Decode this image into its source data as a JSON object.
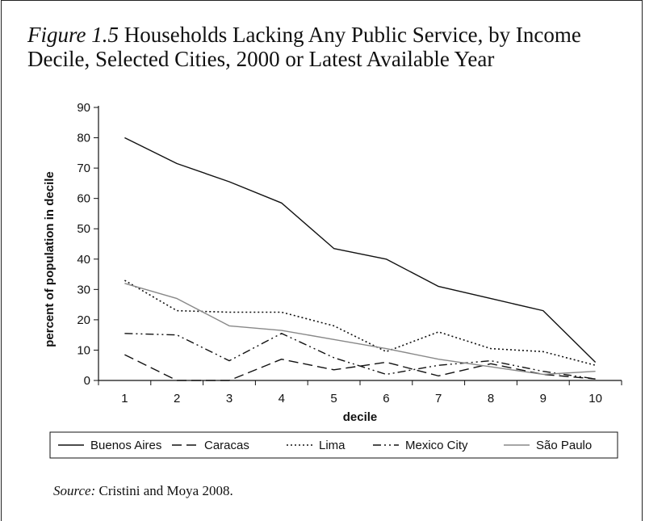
{
  "figure": {
    "label": "Figure 1.5",
    "title": "Households Lacking Any Public Service, by Income Decile, Selected Cities, 2000 or Latest Available Year"
  },
  "source": {
    "label": "Source:",
    "text": "Cristini and Moya 2008."
  },
  "chart_data": {
    "type": "line",
    "xlabel": "decile",
    "ylabel": "percent of population in decile",
    "x": [
      1,
      2,
      3,
      4,
      5,
      6,
      7,
      8,
      9,
      10
    ],
    "xlim": [
      0.5,
      10.5
    ],
    "ylim": [
      0,
      90
    ],
    "yticks": [
      0,
      10,
      20,
      30,
      40,
      50,
      60,
      70,
      80,
      90
    ],
    "grid": false,
    "legend_position": "bottom",
    "series": [
      {
        "name": "Buenos Aires",
        "color": "#111111",
        "dash": "solid",
        "values": [
          80,
          71.5,
          65.5,
          58.5,
          43.5,
          40,
          31,
          27,
          23,
          6
        ]
      },
      {
        "name": "Caracas",
        "color": "#111111",
        "dash": "dashed",
        "values": [
          8.5,
          0,
          0,
          7,
          3.5,
          6,
          1.5,
          5.5,
          2,
          0.5
        ]
      },
      {
        "name": "Lima",
        "color": "#111111",
        "dash": "dotted",
        "values": [
          33,
          23,
          22.5,
          22.5,
          18,
          9.5,
          16,
          10.5,
          9.5,
          5
        ]
      },
      {
        "name": "Mexico City",
        "color": "#111111",
        "dash": "dash-dot-dot",
        "values": [
          15.5,
          15,
          6.5,
          15.5,
          7.5,
          2,
          5,
          6.5,
          3,
          0.5
        ]
      },
      {
        "name": "São Paulo",
        "color": "#888888",
        "dash": "solid",
        "values": [
          32,
          27,
          18,
          16.5,
          13.5,
          10.5,
          7,
          4.5,
          2,
          3
        ]
      }
    ]
  }
}
